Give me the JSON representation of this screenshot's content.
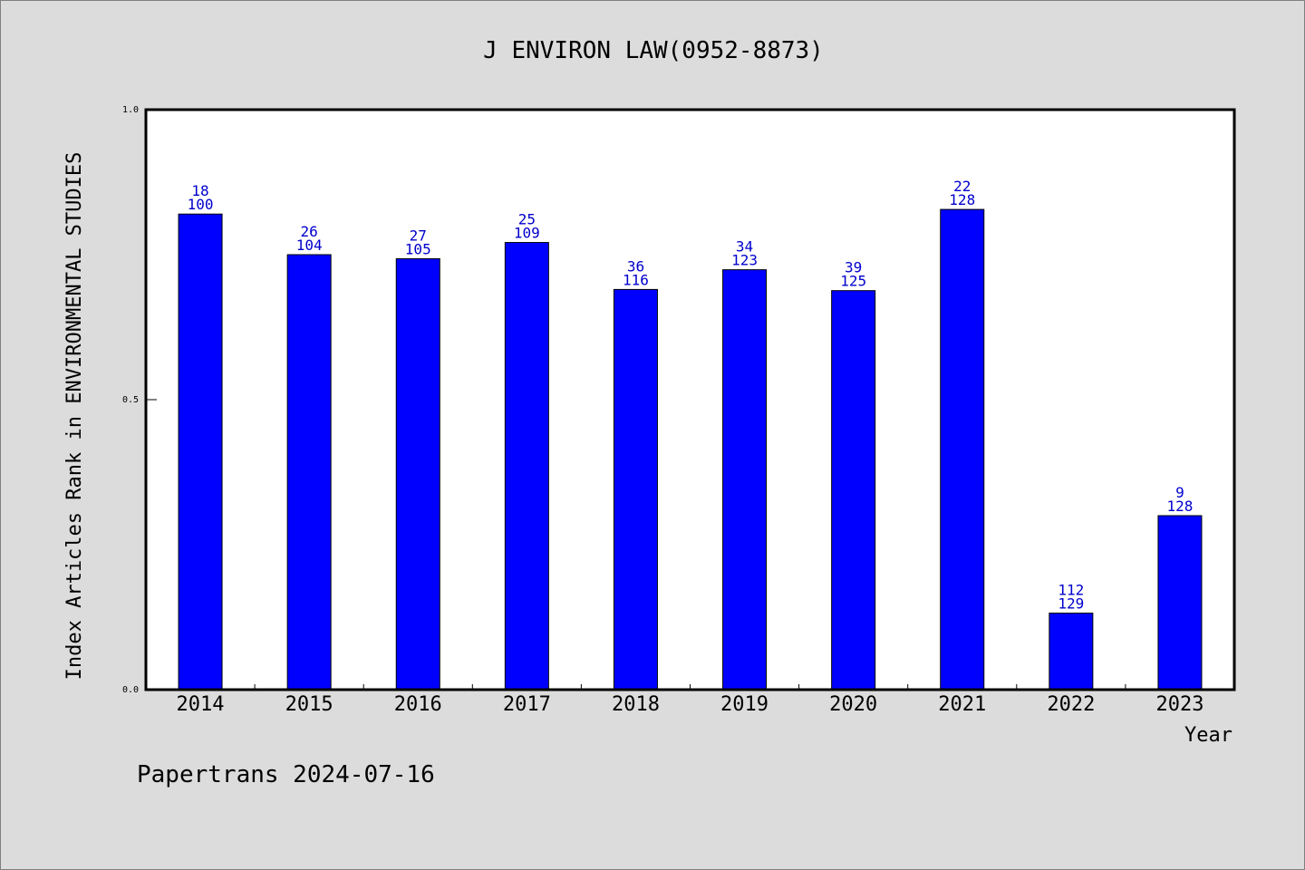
{
  "chart_data": {
    "type": "bar",
    "title": "J ENVIRON LAW(0952-8873)",
    "xlabel": "Year",
    "ylabel": "Index Articles Rank in ENVIRONMENTAL STUDIES",
    "ylim": [
      0,
      1.0
    ],
    "yticks": [
      "0.0",
      "0.5",
      "1.0"
    ],
    "categories": [
      "2014",
      "2015",
      "2016",
      "2017",
      "2018",
      "2019",
      "2020",
      "2021",
      "2022",
      "2023"
    ],
    "values": [
      0.82,
      0.75,
      0.743,
      0.771,
      0.69,
      0.724,
      0.688,
      0.828,
      0.132,
      0.3
    ],
    "ranks": [
      "18",
      "26",
      "27",
      "25",
      "36",
      "34",
      "39",
      "22",
      "112",
      "9"
    ],
    "totals": [
      "100",
      "104",
      "105",
      "109",
      "116",
      "123",
      "125",
      "128",
      "129",
      "128"
    ],
    "bar_color": "#0000ff",
    "label_color": "#0000cc",
    "grid": false
  },
  "footer": {
    "credit": "Papertrans 2024-07-16"
  }
}
